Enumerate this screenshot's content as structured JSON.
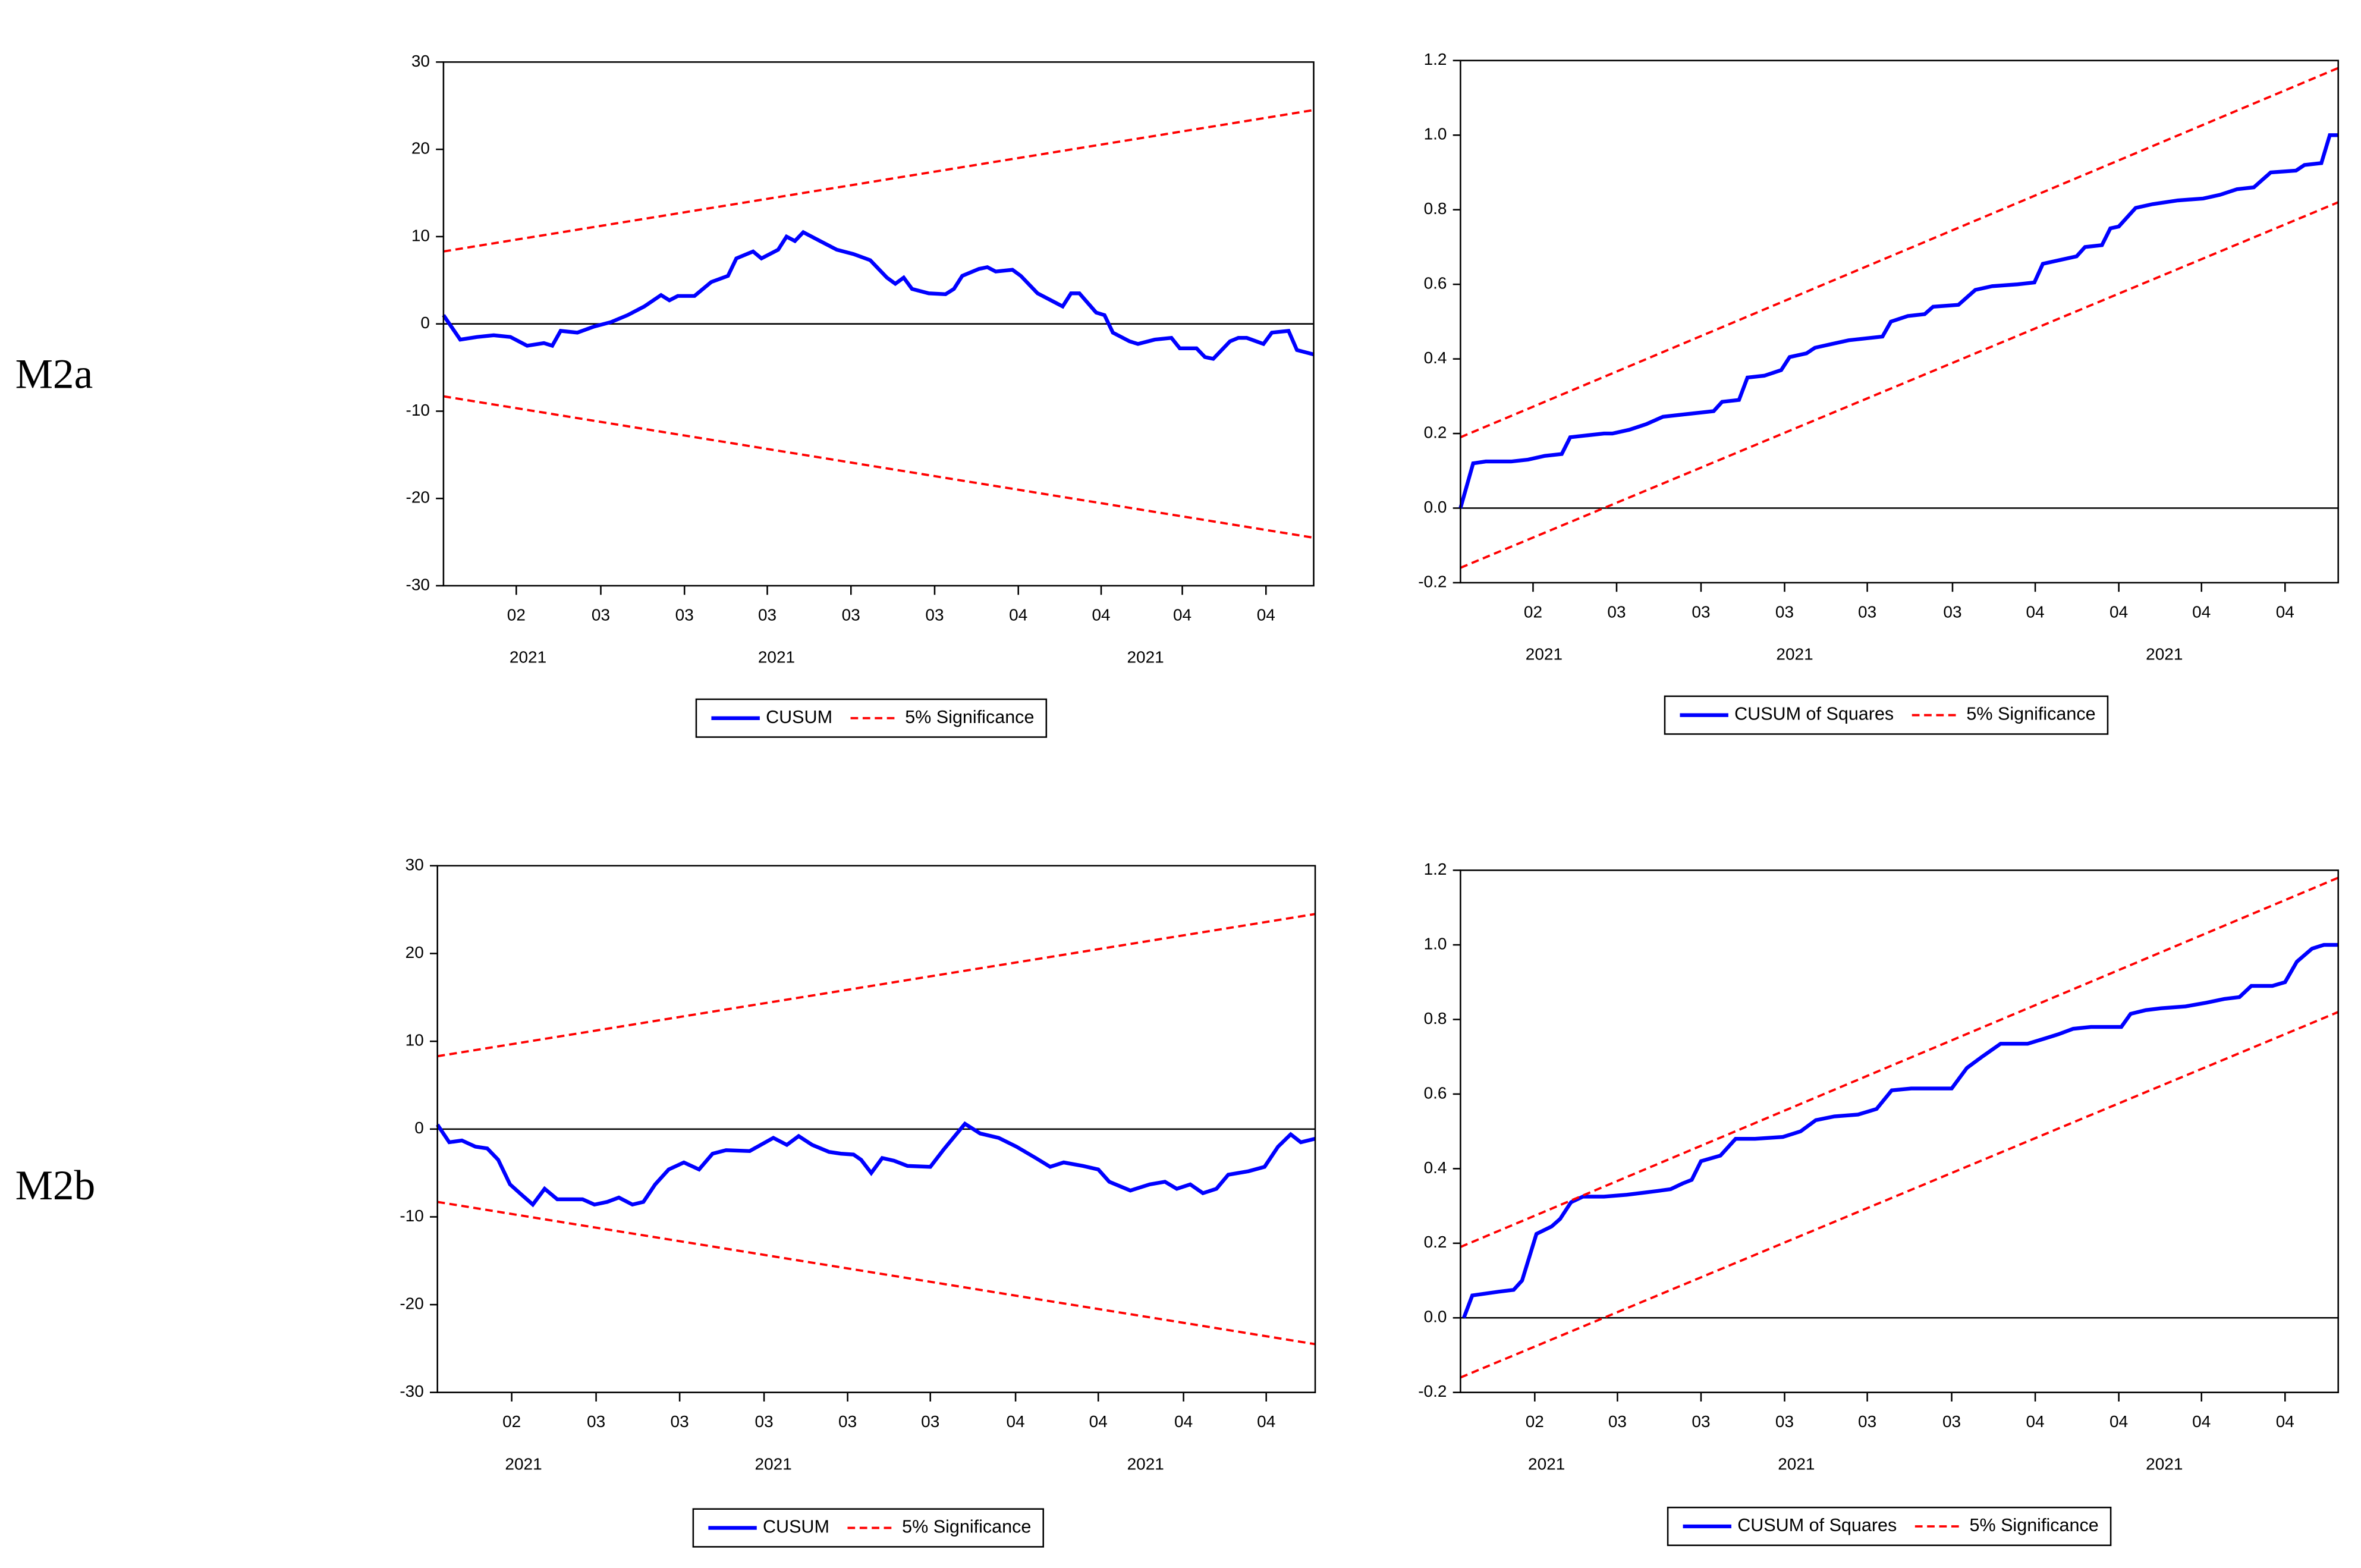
{
  "row_labels": [
    "M2a",
    "M2b"
  ],
  "chart_data": [
    {
      "type": "line",
      "xlim": [
        0,
        104
      ],
      "ylim": [
        -30,
        30
      ],
      "yticks": [
        -30,
        -20,
        -10,
        0,
        10,
        20,
        30
      ],
      "zero_line": true,
      "xticks": [
        {
          "value": 8.7,
          "label": "02"
        },
        {
          "value": 18.8,
          "label": "03"
        },
        {
          "value": 28.8,
          "label": "03"
        },
        {
          "value": 38.7,
          "label": "03"
        },
        {
          "value": 48.7,
          "label": "03"
        },
        {
          "value": 58.7,
          "label": "03"
        },
        {
          "value": 68.7,
          "label": "04"
        },
        {
          "value": 78.6,
          "label": "04"
        },
        {
          "value": 88.3,
          "label": "04"
        },
        {
          "value": 98.3,
          "label": "04"
        }
      ],
      "year_ticks": [
        {
          "value": 10.1,
          "label": "2021"
        },
        {
          "value": 39.8,
          "label": "2021"
        },
        {
          "value": 83.9,
          "label": "2021"
        }
      ],
      "series": [
        {
          "name": "CUSUM",
          "color": "#0000ff",
          "x": [
            0,
            2,
            4,
            6,
            8,
            10,
            12,
            13,
            14,
            16,
            18,
            20,
            22,
            24,
            26,
            27,
            28,
            30,
            32,
            34,
            35,
            37,
            38,
            40,
            41,
            42,
            43,
            45,
            47,
            49,
            51,
            53,
            54,
            55,
            56,
            58,
            60,
            61,
            62,
            64,
            65,
            66,
            68,
            69,
            71,
            73,
            74,
            75,
            76,
            78,
            79,
            80,
            82,
            83,
            85,
            87,
            88,
            90,
            91,
            92,
            94,
            95,
            96,
            98,
            99,
            101,
            102,
            104
          ],
          "values": [
            1,
            -1.8,
            -1.5,
            -1.3,
            -1.5,
            -2.5,
            -2.2,
            -2.5,
            -0.8,
            -1,
            -0.3,
            0.2,
            1,
            2,
            3.3,
            2.7,
            3.2,
            3.2,
            4.8,
            5.5,
            7.5,
            8.3,
            7.5,
            8.5,
            10,
            9.5,
            10.5,
            9.5,
            8.5,
            8,
            7.3,
            5.3,
            4.6,
            5.3,
            4,
            3.5,
            3.4,
            4,
            5.5,
            6.3,
            6.5,
            6,
            6.2,
            5.5,
            3.5,
            2.5,
            2,
            3.5,
            3.5,
            1.3,
            1,
            -1,
            -2,
            -2.3,
            -1.8,
            -1.6,
            -2.8,
            -2.8,
            -3.8,
            -4,
            -2,
            -1.6,
            -1.6,
            -2.3,
            -1,
            -0.8,
            -3,
            -3.5
          ]
        },
        {
          "name": "5% Significance",
          "color": "#ff0000",
          "dashed": true,
          "x": [
            0,
            104
          ],
          "values": [
            8.3,
            24.5
          ],
          "lower_values": [
            -8.3,
            -24.5
          ]
        }
      ]
    },
    {
      "type": "line",
      "xlim": [
        0,
        104
      ],
      "ylim": [
        -0.2,
        1.2
      ],
      "yticks": [
        -0.2,
        {
          "value": 0,
          "label": "0.0"
        },
        0.2,
        0.4,
        0.6,
        0.8,
        {
          "value": 1,
          "label": "1.0"
        },
        1.2
      ],
      "zero_line": true,
      "xticks": [
        {
          "value": 8.6,
          "label": "02"
        },
        {
          "value": 18.5,
          "label": "03"
        },
        {
          "value": 28.5,
          "label": "03"
        },
        {
          "value": 38.4,
          "label": "03"
        },
        {
          "value": 48.2,
          "label": "03"
        },
        {
          "value": 58.3,
          "label": "03"
        },
        {
          "value": 68.1,
          "label": "04"
        },
        {
          "value": 78,
          "label": "04"
        },
        {
          "value": 87.8,
          "label": "04"
        },
        {
          "value": 97.7,
          "label": "04"
        }
      ],
      "year_ticks": [
        {
          "value": 9.9,
          "label": "2021"
        },
        {
          "value": 39.6,
          "label": "2021"
        },
        {
          "value": 83.4,
          "label": "2021"
        }
      ],
      "series": [
        {
          "name": "CUSUM of Squares",
          "color": "#0000ff",
          "x": [
            0,
            1.5,
            3,
            6,
            8,
            10,
            12,
            13,
            15,
            17,
            18,
            20,
            22,
            24,
            26,
            28,
            30,
            31,
            33,
            34,
            36,
            38,
            39,
            41,
            42,
            44,
            46,
            48,
            50,
            51,
            53,
            55,
            56,
            59,
            61,
            63,
            66,
            68,
            69,
            71,
            73,
            74,
            76,
            77,
            78,
            80,
            82,
            85,
            88,
            90,
            92,
            94,
            96,
            99,
            100,
            102,
            103,
            104
          ],
          "values": [
            0,
            0.12,
            0.125,
            0.125,
            0.13,
            0.14,
            0.145,
            0.19,
            0.195,
            0.2,
            0.2,
            0.21,
            0.225,
            0.245,
            0.25,
            0.255,
            0.26,
            0.285,
            0.29,
            0.35,
            0.355,
            0.37,
            0.405,
            0.415,
            0.43,
            0.44,
            0.45,
            0.455,
            0.46,
            0.5,
            0.515,
            0.52,
            0.54,
            0.545,
            0.585,
            0.595,
            0.6,
            0.605,
            0.655,
            0.665,
            0.675,
            0.7,
            0.705,
            0.75,
            0.755,
            0.805,
            0.815,
            0.825,
            0.83,
            0.84,
            0.855,
            0.86,
            0.9,
            0.905,
            0.92,
            0.925,
            1,
            1
          ]
        },
        {
          "name": "5% Significance",
          "color": "#ff0000",
          "dashed": true,
          "x": [
            0,
            104
          ],
          "values": [
            0.19,
            1.18
          ],
          "lower_values": [
            -0.16,
            0.82
          ]
        }
      ]
    },
    {
      "type": "line",
      "xlim": [
        0,
        104
      ],
      "ylim": [
        -30,
        30
      ],
      "yticks": [
        -30,
        -20,
        -10,
        0,
        10,
        20,
        30
      ],
      "zero_line": true,
      "xticks": [
        {
          "value": 8.8,
          "label": "02"
        },
        {
          "value": 18.8,
          "label": "03"
        },
        {
          "value": 28.7,
          "label": "03"
        },
        {
          "value": 38.7,
          "label": "03"
        },
        {
          "value": 48.6,
          "label": "03"
        },
        {
          "value": 58.4,
          "label": "03"
        },
        {
          "value": 68.5,
          "label": "04"
        },
        {
          "value": 78.3,
          "label": "04"
        },
        {
          "value": 88.4,
          "label": "04"
        },
        {
          "value": 98.2,
          "label": "04"
        }
      ],
      "year_ticks": [
        {
          "value": 10.2,
          "label": "2021"
        },
        {
          "value": 39.8,
          "label": "2021"
        },
        {
          "value": 83.9,
          "label": "2021"
        }
      ],
      "series": [
        {
          "name": "CUSUM",
          "color": "#0000ff",
          "x": [
            0,
            1.4,
            2.9,
            4.5,
            5.9,
            7.2,
            8.6,
            10,
            11.3,
            12.7,
            14.2,
            15.8,
            17.2,
            18.6,
            20.1,
            21.5,
            23.1,
            24.4,
            25.8,
            27.4,
            29.2,
            31,
            32.6,
            34.2,
            37,
            39.8,
            41.4,
            42.8,
            44.4,
            46.4,
            47.8,
            49.3,
            50.2,
            51.4,
            52.7,
            54.1,
            55.7,
            58.4,
            60,
            62.5,
            64.3,
            66.5,
            68.6,
            70.9,
            72.6,
            74.2,
            76.5,
            78.3,
            79.6,
            82.1,
            84.4,
            86.2,
            87.6,
            89.2,
            90.7,
            92.3,
            93.7,
            96.1,
            98,
            99.6,
            101.1,
            102.3,
            104
          ],
          "values": [
            0.5,
            -1.5,
            -1.3,
            -2,
            -2.2,
            -3.5,
            -6.3,
            -7.5,
            -8.6,
            -6.8,
            -8,
            -8,
            -8,
            -8.6,
            -8.3,
            -7.8,
            -8.6,
            -8.3,
            -6.3,
            -4.6,
            -3.8,
            -4.6,
            -2.8,
            -2.4,
            -2.5,
            -1,
            -1.8,
            -0.8,
            -1.8,
            -2.6,
            -2.8,
            -2.9,
            -3.5,
            -5,
            -3.3,
            -3.6,
            -4.2,
            -4.3,
            -2.3,
            0.6,
            -0.5,
            -1,
            -2,
            -3.3,
            -4.3,
            -3.8,
            -4.2,
            -4.6,
            -6,
            -7,
            -6.3,
            -6,
            -6.8,
            -6.3,
            -7.3,
            -6.8,
            -5.2,
            -4.8,
            -4.3,
            -2,
            -0.6,
            -1.5,
            -1.1
          ]
        },
        {
          "name": "5% Significance",
          "color": "#ff0000",
          "dashed": true,
          "x": [
            0,
            104
          ],
          "values": [
            8.3,
            24.5
          ],
          "lower_values": [
            -8.3,
            -24.5
          ]
        }
      ]
    },
    {
      "type": "line",
      "xlim": [
        0,
        104
      ],
      "ylim": [
        -0.2,
        1.2
      ],
      "yticks": [
        -0.2,
        {
          "value": 0,
          "label": "0.0"
        },
        0.2,
        0.4,
        0.6,
        0.8,
        {
          "value": 1,
          "label": "1.0"
        },
        1.2
      ],
      "zero_line": true,
      "xticks": [
        {
          "value": 8.8,
          "label": "02"
        },
        {
          "value": 18.6,
          "label": "03"
        },
        {
          "value": 28.5,
          "label": "03"
        },
        {
          "value": 38.4,
          "label": "03"
        },
        {
          "value": 48.2,
          "label": "03"
        },
        {
          "value": 58.2,
          "label": "03"
        },
        {
          "value": 68.1,
          "label": "04"
        },
        {
          "value": 78,
          "label": "04"
        },
        {
          "value": 87.8,
          "label": "04"
        },
        {
          "value": 97.7,
          "label": "04"
        }
      ],
      "year_ticks": [
        {
          "value": 10.2,
          "label": "2021"
        },
        {
          "value": 39.8,
          "label": "2021"
        },
        {
          "value": 83.4,
          "label": "2021"
        }
      ],
      "series": [
        {
          "name": "CUSUM of Squares",
          "color": "#0000ff",
          "x": [
            0.4,
            1.4,
            4.5,
            6.3,
            7.3,
            9,
            10.8,
            11.8,
            13.1,
            14.5,
            17,
            19.7,
            21.5,
            23.3,
            24.9,
            26.3,
            27.4,
            28.5,
            30.8,
            32.6,
            34.9,
            38.2,
            40.3,
            42.1,
            44.3,
            47.1,
            49.3,
            51.1,
            53.4,
            58.2,
            60,
            61.8,
            64,
            67.2,
            69.4,
            70.8,
            72.6,
            74.7,
            78.3,
            79.4,
            81.2,
            83,
            85.9,
            88.4,
            90.5,
            92.3,
            93.7,
            96.2,
            97.7,
            99.1,
            100.9,
            102.3,
            104
          ],
          "values": [
            0,
            0.06,
            0.07,
            0.075,
            0.1,
            0.225,
            0.245,
            0.265,
            0.31,
            0.325,
            0.325,
            0.33,
            0.335,
            0.34,
            0.345,
            0.36,
            0.37,
            0.42,
            0.435,
            0.48,
            0.48,
            0.485,
            0.5,
            0.53,
            0.54,
            0.545,
            0.56,
            0.61,
            0.615,
            0.615,
            0.67,
            0.7,
            0.735,
            0.735,
            0.75,
            0.76,
            0.775,
            0.78,
            0.78,
            0.815,
            0.825,
            0.83,
            0.835,
            0.845,
            0.855,
            0.86,
            0.89,
            0.89,
            0.9,
            0.955,
            0.99,
            1,
            1
          ]
        },
        {
          "name": "5% Significance",
          "color": "#ff0000",
          "dashed": true,
          "x": [
            0,
            104
          ],
          "values": [
            -0.16,
            0.82
          ],
          "upper_values": [
            0.19,
            1.18
          ]
        }
      ]
    }
  ]
}
